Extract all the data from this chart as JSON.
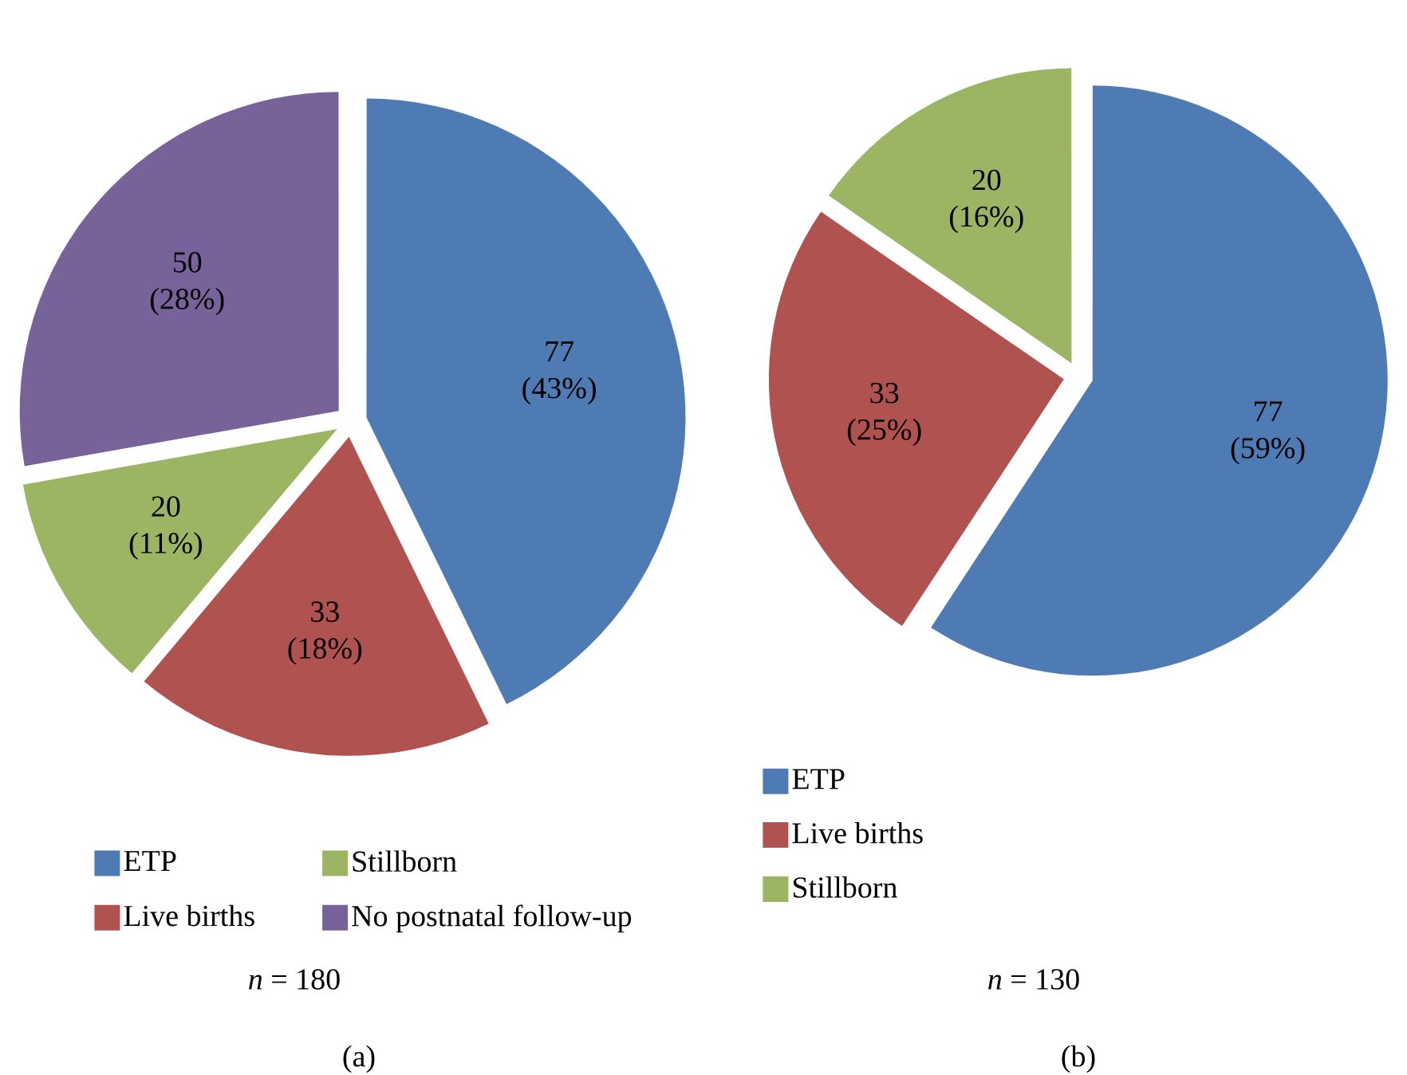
{
  "chart_data": [
    {
      "type": "pie",
      "title": "(a)",
      "subtitle": "*n* = 180",
      "categories": [
        "ETP",
        "Live births",
        "Stillborn",
        "No postnatal follow-up"
      ],
      "values": [
        77,
        33,
        20,
        50
      ],
      "colors": [
        "#4f7bb4",
        "#b0524f",
        "#9bb563",
        "#77629a"
      ],
      "value_labels": [
        "77 (43%)",
        "33 (18%)",
        "20 (11%)",
        "50 (28%)"
      ],
      "legend": "bottom"
    },
    {
      "type": "pie",
      "title": "(b)",
      "subtitle": "*n* = 130",
      "categories": [
        "ETP",
        "Live births",
        "Stillborn"
      ],
      "values": [
        77,
        33,
        20
      ],
      "colors": [
        "#4f7bb4",
        "#b0524f",
        "#9bb563"
      ],
      "value_labels": [
        "77 (59%)",
        "33 (25%)",
        "20 (16%)"
      ],
      "legend": "bottom"
    }
  ]
}
